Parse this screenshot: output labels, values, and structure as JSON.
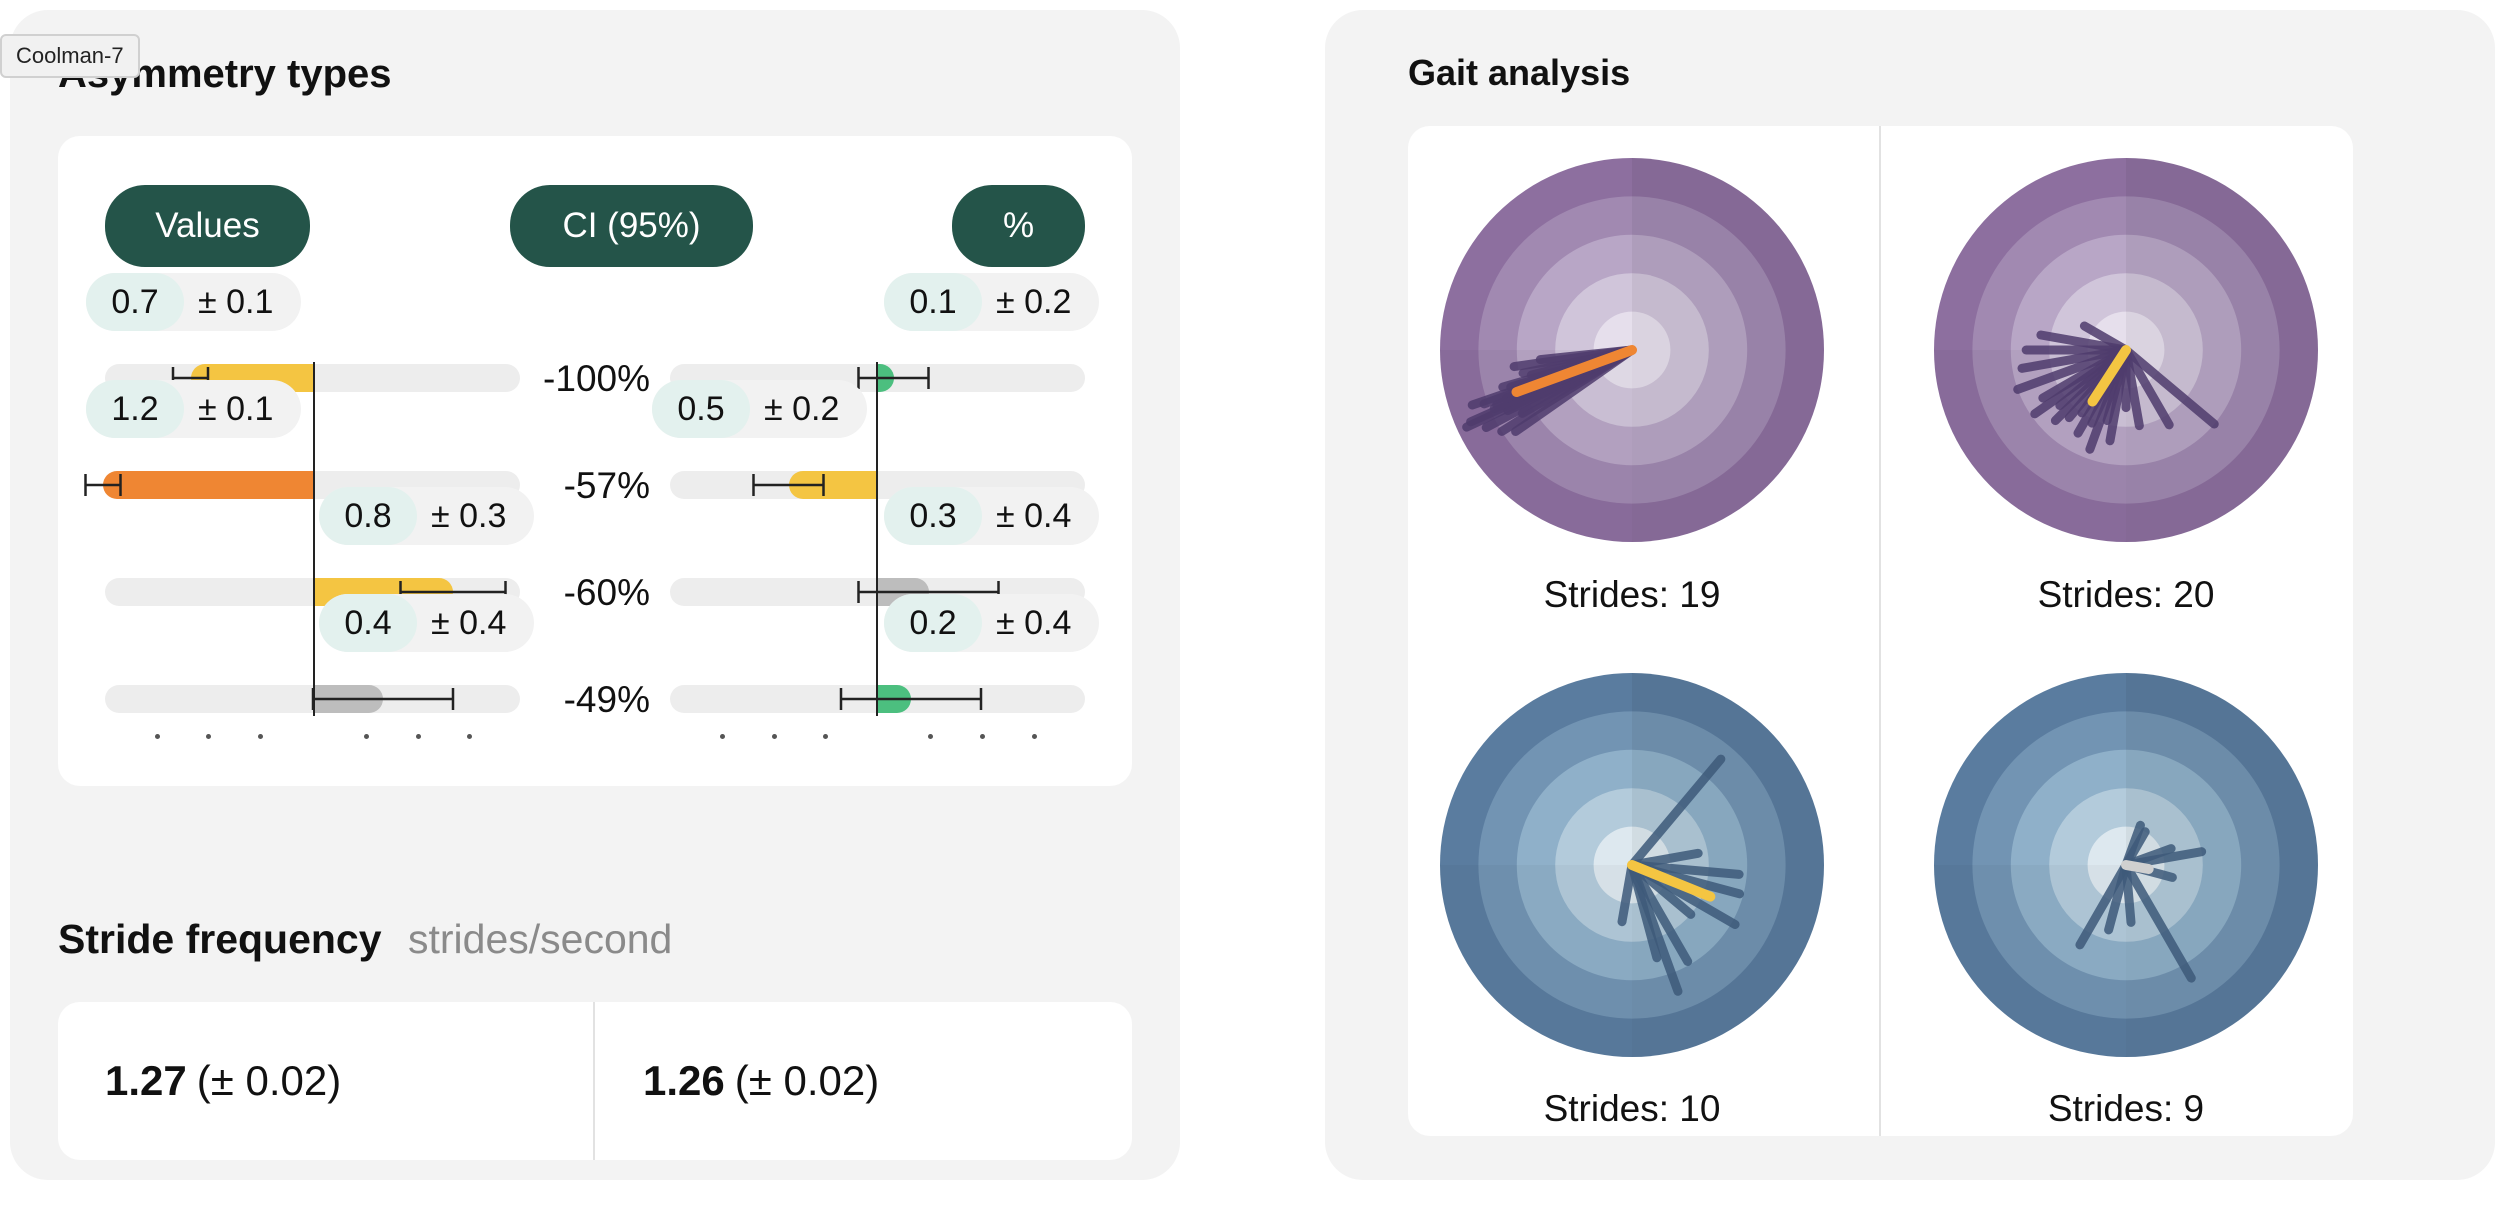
{
  "window_tag": "Coolman-7",
  "asymmetry": {
    "title": "Asymmetry types",
    "headers": {
      "values": "Values",
      "ci": "CI (95%)",
      "percent": "%"
    },
    "left_rows": [
      {
        "value": "0.7",
        "error": "± 0.1",
        "bar_value": -0.7,
        "ci": 0.1,
        "color": "#f4c542"
      },
      {
        "value": "1.2",
        "error": "± 0.1",
        "bar_value": -1.2,
        "ci": 0.1,
        "color": "#ef8633"
      },
      {
        "value": "0.8",
        "error": "± 0.3",
        "bar_value": 0.8,
        "ci": 0.3,
        "color": "#f4c542"
      },
      {
        "value": "0.4",
        "error": "± 0.4",
        "bar_value": 0.4,
        "ci": 0.4,
        "color": "#bdbdbd"
      }
    ],
    "percents": [
      "-100%",
      "-57%",
      "-60%",
      "-49%"
    ],
    "right_rows": [
      {
        "value": "0.1",
        "error": "± 0.2",
        "bar_value": 0.1,
        "ci": 0.2,
        "color": "#4cbf7f"
      },
      {
        "value": "0.5",
        "error": "± 0.2",
        "bar_value": -0.5,
        "ci": 0.2,
        "color": "#f4c542"
      },
      {
        "value": "0.3",
        "error": "± 0.4",
        "bar_value": 0.3,
        "ci": 0.4,
        "color": "#bdbdbd"
      },
      {
        "value": "0.2",
        "error": "± 0.4",
        "bar_value": 0.2,
        "ci": 0.4,
        "color": "#4cbf7f"
      }
    ]
  },
  "stride_frequency": {
    "title": "Stride frequency",
    "unit": "strides/second",
    "left": {
      "value": "1.27",
      "ci": "(± 0.02)"
    },
    "right": {
      "value": "1.26",
      "ci": "(± 0.02)"
    }
  },
  "gait": {
    "title": "Gait analysis",
    "plots": [
      {
        "label": "Strides: 19",
        "palette": "purple",
        "highlight_color": "#ef8633",
        "highlight": {
          "angle": 200,
          "length": 0.64
        },
        "strides": [
          [
            196,
            0.7
          ],
          [
            202,
            0.76
          ],
          [
            208,
            0.86
          ],
          [
            204,
            0.92
          ],
          [
            198,
            0.6
          ],
          [
            192,
            0.58
          ],
          [
            186,
            0.48
          ],
          [
            212,
            0.8
          ],
          [
            206,
            0.72
          ],
          [
            200,
            0.82
          ],
          [
            210,
            0.66
          ],
          [
            194,
            0.54
          ],
          [
            188,
            0.62
          ],
          [
            215,
            0.74
          ],
          [
            205,
            0.95
          ],
          [
            199,
            0.88
          ],
          [
            203,
            0.78
          ],
          [
            197,
            0.66
          ],
          [
            201,
            0.7
          ]
        ]
      },
      {
        "label": "Strides: 20",
        "palette": "purple",
        "highlight_color": "#f4c542",
        "highlight": {
          "angle": 237,
          "length": 0.32
        },
        "strides": [
          [
            150,
            0.25
          ],
          [
            210,
            0.5
          ],
          [
            220,
            0.45
          ],
          [
            230,
            0.46
          ],
          [
            240,
            0.5
          ],
          [
            250,
            0.55
          ],
          [
            260,
            0.48
          ],
          [
            270,
            0.3
          ],
          [
            280,
            0.4
          ],
          [
            300,
            0.45
          ],
          [
            320,
            0.6
          ],
          [
            170,
            0.45
          ],
          [
            180,
            0.52
          ],
          [
            190,
            0.55
          ],
          [
            200,
            0.6
          ],
          [
            215,
            0.58
          ],
          [
            225,
            0.52
          ],
          [
            235,
            0.4
          ],
          [
            245,
            0.42
          ],
          [
            255,
            0.38
          ]
        ]
      },
      {
        "label": "Strides: 10",
        "palette": "blue",
        "highlight_color": "#f4c542",
        "highlight": {
          "angle": 338,
          "length": 0.44
        },
        "strides": [
          [
            50,
            0.72
          ],
          [
            290,
            0.7
          ],
          [
            300,
            0.58
          ],
          [
            330,
            0.62
          ],
          [
            345,
            0.58
          ],
          [
            355,
            0.56
          ],
          [
            260,
            0.3
          ],
          [
            320,
            0.4
          ],
          [
            285,
            0.5
          ],
          [
            10,
            0.35
          ]
        ]
      },
      {
        "label": "Strides: 9",
        "palette": "blue",
        "highlight_color": "#d0d0d0",
        "highlight": {
          "angle": 350,
          "length": 0.12
        },
        "strides": [
          [
            60,
            0.2
          ],
          [
            70,
            0.22
          ],
          [
            10,
            0.4
          ],
          [
            300,
            0.68
          ],
          [
            240,
            0.48
          ],
          [
            345,
            0.25
          ],
          [
            20,
            0.25
          ],
          [
            255,
            0.35
          ],
          [
            275,
            0.3
          ]
        ]
      }
    ]
  },
  "colors": {
    "accent": "#245449",
    "purple_rings": [
      "#8d6f9f",
      "#a189b1",
      "#b8a6c6",
      "#d0c5da",
      "#e6dfec"
    ],
    "blue_rings": [
      "#5a7c9f",
      "#7294b3",
      "#8fb0c9",
      "#b3cbdb",
      "#dde8ef"
    ],
    "purple_strides": "#4f3c6d",
    "blue_strides": "#3e5a7a"
  }
}
